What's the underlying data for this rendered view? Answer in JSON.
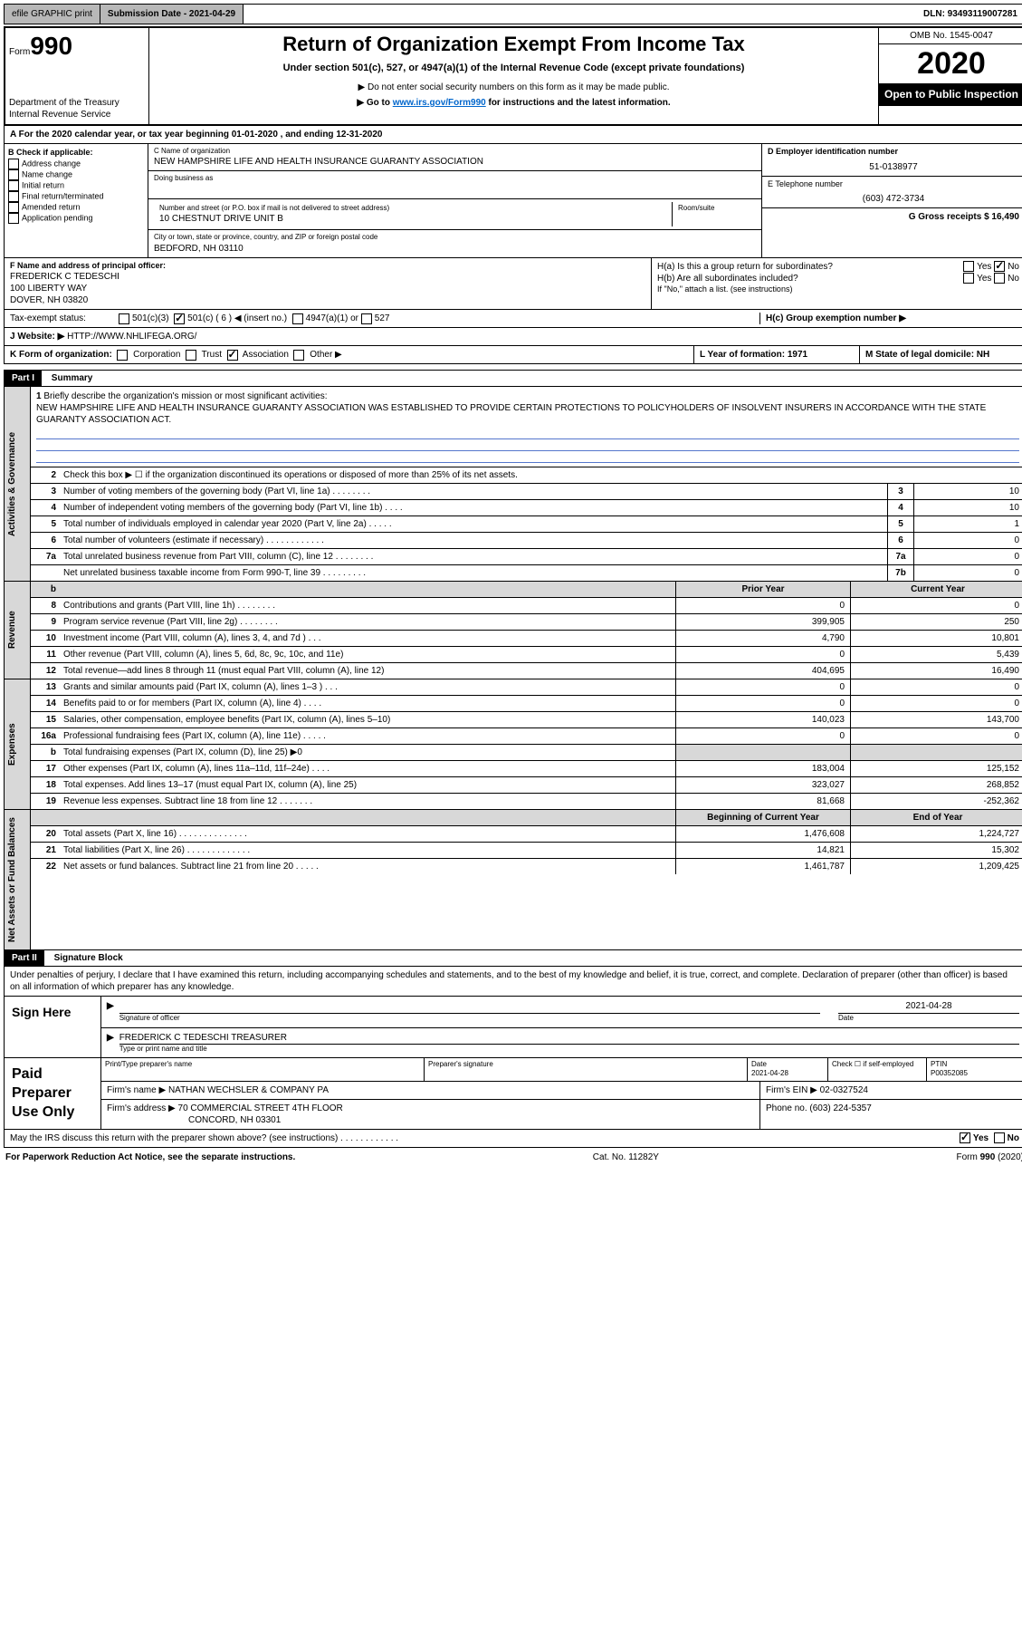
{
  "topbar": {
    "efile": "efile GRAPHIC print",
    "subdate_lbl": "Submission Date - 2021-04-29",
    "dln": "DLN: 93493119007281"
  },
  "hdr": {
    "form": "990",
    "form_prefix": "Form",
    "title": "Return of Organization Exempt From Income Tax",
    "sub1": "Under section 501(c), 527, or 4947(a)(1) of the Internal Revenue Code (except private foundations)",
    "sub2": "▶ Do not enter social security numbers on this form as it may be made public.",
    "sub3_pre": "▶ Go to ",
    "sub3_link": "www.irs.gov/Form990",
    "sub3_post": " for instructions and the latest information.",
    "agency1": "Department of the Treasury",
    "agency2": "Internal Revenue Service",
    "omb": "OMB No. 1545-0047",
    "year": "2020",
    "public": "Open to Public Inspection"
  },
  "taxyr": "A For the 2020 calendar year, or tax year beginning 01-01-2020   , and ending 12-31-2020",
  "boxB": {
    "lbl": "B Check if applicable:",
    "opts": [
      "Address change",
      "Name change",
      "Initial return",
      "Final return/terminated",
      "Amended return",
      "Application pending"
    ]
  },
  "boxC": {
    "lbl": "C Name of organization",
    "name": "NEW HAMPSHIRE LIFE AND HEALTH INSURANCE GUARANTY ASSOCIATION",
    "dba_lbl": "Doing business as",
    "addr_lbl": "Number and street (or P.O. box if mail is not delivered to street address)",
    "room_lbl": "Room/suite",
    "addr": "10 CHESTNUT DRIVE UNIT B",
    "city_lbl": "City or town, state or province, country, and ZIP or foreign postal code",
    "city": "BEDFORD, NH  03110"
  },
  "boxD": {
    "lbl": "D Employer identification number",
    "ein": "51-0138977"
  },
  "boxE": {
    "lbl": "E Telephone number",
    "tel": "(603) 472-3734"
  },
  "boxG": {
    "lbl": "G Gross receipts $ 16,490"
  },
  "boxF": {
    "lbl": "F  Name and address of principal officer:",
    "name": "FREDERICK C TEDESCHI",
    "addr1": "100 LIBERTY WAY",
    "addr2": "DOVER, NH  03820"
  },
  "boxH": {
    "a": "H(a)  Is this a group return for subordinates?",
    "b": "H(b)  Are all subordinates included?",
    "b_note": "If \"No,\" attach a list. (see instructions)",
    "c": "H(c)  Group exemption number ▶",
    "yes": "Yes",
    "no": "No"
  },
  "taxexempt": {
    "lbl": "Tax-exempt status:",
    "o1": "501(c)(3)",
    "o2": "501(c) ( 6 ) ◀ (insert no.)",
    "o3": "4947(a)(1) or",
    "o4": "527"
  },
  "boxJ": {
    "lbl": "J Website: ▶",
    "url": "HTTP://WWW.NHLIFEGA.ORG/"
  },
  "boxK": {
    "lbl": "K Form of organization:",
    "o1": "Corporation",
    "o2": "Trust",
    "o3": "Association",
    "o4": "Other ▶"
  },
  "boxL": {
    "lbl": "L Year of formation: 1971"
  },
  "boxM": {
    "lbl": "M State of legal domicile: NH"
  },
  "part1": {
    "hdr": "Part I",
    "title": "Summary"
  },
  "activities": {
    "tab": "Activities & Governance",
    "l1_lbl": "Briefly describe the organization's mission or most significant activities:",
    "l1_text": "NEW HAMPSHIRE LIFE AND HEALTH INSURANCE GUARANTY ASSOCIATION WAS ESTABLISHED TO PROVIDE CERTAIN PROTECTIONS TO POLICYHOLDERS OF INSOLVENT INSURERS IN ACCORDANCE WITH THE STATE GUARANTY ASSOCIATION ACT.",
    "l2": "Check this box ▶ ☐ if the organization discontinued its operations or disposed of more than 25% of its net assets.",
    "rows": [
      {
        "n": "3",
        "t": "Number of voting members of the governing body (Part VI, line 1a)  .    .    .    .    .    .    .    .",
        "b": "3",
        "v": "10"
      },
      {
        "n": "4",
        "t": "Number of independent voting members of the governing body (Part VI, line 1b)   .    .    .    .",
        "b": "4",
        "v": "10"
      },
      {
        "n": "5",
        "t": "Total number of individuals employed in calendar year 2020 (Part V, line 2a)    .    .    .    .    .",
        "b": "5",
        "v": "1"
      },
      {
        "n": "6",
        "t": "Total number of volunteers (estimate if necessary)    .    .    .    .    .    .    .    .    .    .    .    .",
        "b": "6",
        "v": "0"
      },
      {
        "n": "7a",
        "t": "Total unrelated business revenue from Part VIII, column (C), line 12   .    .    .    .    .    .    .    .",
        "b": "7a",
        "v": "0"
      },
      {
        "n": "",
        "t": "Net unrelated business taxable income from Form 990-T, line 39   .    .    .    .    .    .    .    .    .",
        "b": "7b",
        "v": "0"
      }
    ]
  },
  "revenue": {
    "tab": "Revenue",
    "hdr_prior": "Prior Year",
    "hdr_cur": "Current Year",
    "rows": [
      {
        "n": "8",
        "t": "Contributions and grants (Part VIII, line 1h)    .    .    .    .    .    .    .    .",
        "p": "0",
        "c": "0"
      },
      {
        "n": "9",
        "t": "Program service revenue (Part VIII, line 2g)   .    .    .    .    .    .    .    .",
        "p": "399,905",
        "c": "250"
      },
      {
        "n": "10",
        "t": "Investment income (Part VIII, column (A), lines 3, 4, and 7d )   .    .    .",
        "p": "4,790",
        "c": "10,801"
      },
      {
        "n": "11",
        "t": "Other revenue (Part VIII, column (A), lines 5, 6d, 8c, 9c, 10c, and 11e)",
        "p": "0",
        "c": "5,439"
      },
      {
        "n": "12",
        "t": "Total revenue—add lines 8 through 11 (must equal Part VIII, column (A), line 12)",
        "p": "404,695",
        "c": "16,490"
      }
    ]
  },
  "expenses": {
    "tab": "Expenses",
    "rows": [
      {
        "n": "13",
        "t": "Grants and similar amounts paid (Part IX, column (A), lines 1–3 )  .    .    .",
        "p": "0",
        "c": "0"
      },
      {
        "n": "14",
        "t": "Benefits paid to or for members (Part IX, column (A), line 4)    .    .    .    .",
        "p": "0",
        "c": "0"
      },
      {
        "n": "15",
        "t": "Salaries, other compensation, employee benefits (Part IX, column (A), lines 5–10)",
        "p": "140,023",
        "c": "143,700"
      },
      {
        "n": "16a",
        "t": "Professional fundraising fees (Part IX, column (A), line 11e)  .    .    .    .    .",
        "p": "0",
        "c": "0"
      },
      {
        "n": "b",
        "t": "Total fundraising expenses (Part IX, column (D), line 25) ▶0",
        "p": "",
        "c": "",
        "grey": true
      },
      {
        "n": "17",
        "t": "Other expenses (Part IX, column (A), lines 11a–11d, 11f–24e)    .    .    .    .",
        "p": "183,004",
        "c": "125,152"
      },
      {
        "n": "18",
        "t": "Total expenses. Add lines 13–17 (must equal Part IX, column (A), line 25)",
        "p": "323,027",
        "c": "268,852"
      },
      {
        "n": "19",
        "t": "Revenue less expenses. Subtract line 18 from line 12  .    .    .    .    .    .    .",
        "p": "81,668",
        "c": "-252,362"
      }
    ]
  },
  "netassets": {
    "tab": "Net Assets or Fund Balances",
    "hdr_beg": "Beginning of Current Year",
    "hdr_end": "End of Year",
    "rows": [
      {
        "n": "20",
        "t": "Total assets (Part X, line 16)   .    .    .    .    .    .    .    .    .    .    .    .    .    .",
        "p": "1,476,608",
        "c": "1,224,727"
      },
      {
        "n": "21",
        "t": "Total liabilities (Part X, line 26)    .    .    .    .    .    .    .    .    .    .    .    .    .",
        "p": "14,821",
        "c": "15,302"
      },
      {
        "n": "22",
        "t": "Net assets or fund balances. Subtract line 21 from line 20    .    .    .    .    .",
        "p": "1,461,787",
        "c": "1,209,425"
      }
    ]
  },
  "part2": {
    "hdr": "Part II",
    "title": "Signature Block",
    "decl": "Under penalties of perjury, I declare that I have examined this return, including accompanying schedules and statements, and to the best of my knowledge and belief, it is true, correct, and complete. Declaration of preparer (other than officer) is based on all information of which preparer has any knowledge."
  },
  "sign": {
    "here": "Sign Here",
    "sig_lbl": "Signature of officer",
    "date_lbl": "Date",
    "date": "2021-04-28",
    "name": "FREDERICK C TEDESCHI  TREASURER",
    "name_lbl": "Type or print name and title"
  },
  "paid": {
    "lbl": "Paid Preparer Use Only",
    "c1": "Print/Type preparer's name",
    "c2": "Preparer's signature",
    "c3": "Date",
    "c3v": "2021-04-28",
    "c4": "Check ☐ if self-employed",
    "c5": "PTIN",
    "c5v": "P00352085",
    "firm_lbl": "Firm's name   ▶",
    "firm": "NATHAN WECHSLER & COMPANY PA",
    "ein_lbl": "Firm's EIN ▶",
    "ein": "02-0327524",
    "addr_lbl": "Firm's address ▶",
    "addr1": "70 COMMERCIAL STREET 4TH FLOOR",
    "addr2": "CONCORD, NH  03301",
    "phone_lbl": "Phone no. (603) 224-5357",
    "discuss": "May the IRS discuss this return with the preparer shown above? (see instructions)   .    .    .    .    .    .    .    .    .    .    .    ."
  },
  "bottom": {
    "l": "For Paperwork Reduction Act Notice, see the separate instructions.",
    "m": "Cat. No. 11282Y",
    "r": "Form 990 (2020)"
  },
  "colors": {
    "grey": "#d8d8d8",
    "black": "#000",
    "link": "#0066cc"
  }
}
